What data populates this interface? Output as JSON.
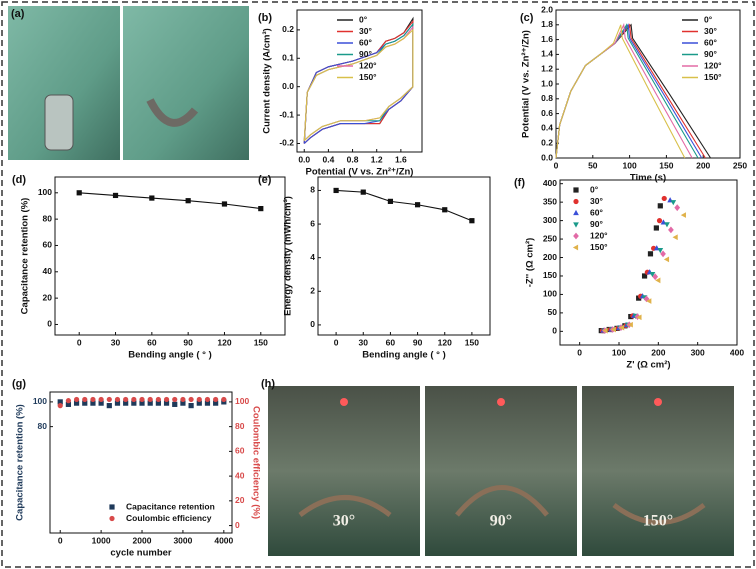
{
  "photos": [
    {
      "panel": "(a)"
    },
    {
      "panel": "(h)",
      "labels": [
        "30°",
        "90°",
        "150°"
      ]
    }
  ],
  "chart_data": [
    {
      "type": "line",
      "panel": "(b)",
      "x_label": "Potential (V vs. Zn²⁺/Zn)",
      "y_label": "Current density (A/cm³)",
      "x": [
        0,
        0.05,
        0.2,
        0.4,
        0.8,
        1.2,
        1.35,
        1.5,
        1.65,
        1.8,
        1.8,
        1.6,
        1.4,
        1.25,
        1.0,
        0.6,
        0.3,
        0.1,
        0
      ],
      "series": [
        {
          "name": "0°",
          "color": "#222222",
          "values": [
            -0.2,
            -0.02,
            0.05,
            0.07,
            0.09,
            0.12,
            0.16,
            0.17,
            0.19,
            0.24,
            0.0,
            -0.05,
            -0.08,
            -0.13,
            -0.13,
            -0.13,
            -0.15,
            -0.18,
            -0.2
          ]
        },
        {
          "name": "30°",
          "color": "#e0312e",
          "values": [
            -0.2,
            -0.02,
            0.05,
            0.07,
            0.09,
            0.12,
            0.16,
            0.17,
            0.19,
            0.23,
            0.0,
            -0.05,
            -0.08,
            -0.13,
            -0.13,
            -0.13,
            -0.15,
            -0.18,
            -0.2
          ]
        },
        {
          "name": "60°",
          "color": "#3a4fd8",
          "values": [
            -0.2,
            -0.02,
            0.05,
            0.07,
            0.09,
            0.12,
            0.15,
            0.16,
            0.18,
            0.22,
            0.0,
            -0.05,
            -0.08,
            -0.12,
            -0.13,
            -0.13,
            -0.15,
            -0.18,
            -0.2
          ]
        },
        {
          "name": "90°",
          "color": "#1a9a8a",
          "values": [
            -0.19,
            -0.02,
            0.04,
            0.06,
            0.08,
            0.11,
            0.15,
            0.16,
            0.18,
            0.22,
            0.0,
            -0.04,
            -0.07,
            -0.12,
            -0.12,
            -0.12,
            -0.14,
            -0.17,
            -0.19
          ]
        },
        {
          "name": "120°",
          "color": "#e26aa6",
          "values": [
            -0.19,
            -0.02,
            0.04,
            0.06,
            0.08,
            0.11,
            0.14,
            0.15,
            0.17,
            0.21,
            0.0,
            -0.04,
            -0.07,
            -0.11,
            -0.12,
            -0.12,
            -0.14,
            -0.17,
            -0.19
          ]
        },
        {
          "name": "150°",
          "color": "#d8c04a",
          "values": [
            -0.19,
            -0.02,
            0.04,
            0.06,
            0.08,
            0.11,
            0.14,
            0.15,
            0.17,
            0.2,
            0.0,
            -0.04,
            -0.07,
            -0.11,
            -0.12,
            -0.12,
            -0.14,
            -0.17,
            -0.19
          ]
        }
      ],
      "xlim": [
        -0.12,
        1.95
      ],
      "ylim": [
        -0.23,
        0.27
      ],
      "xticks": [
        {
          "value": 0,
          "label": "0.0"
        },
        0.4,
        0.8,
        1.2,
        1.6
      ],
      "yticks": [
        -0.2,
        -0.1,
        {
          "value": 0,
          "label": "0.0"
        },
        0.1,
        0.2
      ],
      "legend": "upper center"
    },
    {
      "type": "line",
      "panel": "(c)",
      "x_label": "Time (s)",
      "y_label": "Potential (V vs. Zn²⁺/Zn)",
      "series": [
        {
          "name": "0°",
          "color": "#222222",
          "x": [
            0,
            5,
            20,
            40,
            60,
            80,
            102,
            104,
            155,
            210
          ],
          "values": [
            0,
            0.45,
            0.9,
            1.25,
            1.4,
            1.55,
            1.8,
            1.62,
            0.85,
            0
          ]
        },
        {
          "name": "30°",
          "color": "#e0312e",
          "x": [
            0,
            5,
            20,
            40,
            60,
            80,
            100,
            102,
            150,
            203
          ],
          "values": [
            0,
            0.45,
            0.9,
            1.25,
            1.4,
            1.55,
            1.8,
            1.62,
            0.85,
            0
          ]
        },
        {
          "name": "60°",
          "color": "#3a4fd8",
          "x": [
            0,
            5,
            20,
            40,
            60,
            80,
            98,
            100,
            147,
            198
          ],
          "values": [
            0,
            0.45,
            0.9,
            1.25,
            1.4,
            1.55,
            1.8,
            1.62,
            0.85,
            0
          ]
        },
        {
          "name": "90°",
          "color": "#1a9a8a",
          "x": [
            0,
            5,
            20,
            40,
            60,
            80,
            96,
            98,
            143,
            193
          ],
          "values": [
            0,
            0.45,
            0.9,
            1.25,
            1.4,
            1.55,
            1.8,
            1.62,
            0.85,
            0
          ]
        },
        {
          "name": "120°",
          "color": "#e26aa6",
          "x": [
            0,
            5,
            20,
            40,
            60,
            80,
            92,
            94,
            137,
            185
          ],
          "values": [
            0,
            0.45,
            0.9,
            1.25,
            1.4,
            1.55,
            1.8,
            1.62,
            0.85,
            0
          ]
        },
        {
          "name": "150°",
          "color": "#d8c04a",
          "x": [
            0,
            5,
            20,
            40,
            60,
            78,
            88,
            90,
            130,
            175
          ],
          "values": [
            0,
            0.45,
            0.9,
            1.25,
            1.4,
            1.55,
            1.8,
            1.62,
            0.85,
            0
          ]
        }
      ],
      "xlim": [
        0,
        250
      ],
      "ylim": [
        0,
        2
      ],
      "xticks": [
        0,
        50,
        100,
        150,
        200,
        250
      ],
      "yticks": [
        {
          "value": 0,
          "label": "0.0"
        },
        0.2,
        0.4,
        0.6,
        0.8,
        {
          "value": 1,
          "label": "1.0"
        },
        1.2,
        1.4,
        1.6,
        1.8,
        {
          "value": 2,
          "label": "2.0"
        }
      ],
      "legend": "upper right"
    },
    {
      "type": "line",
      "panel": "(d)",
      "markers": true,
      "x_label": "Bending angle ( ° )",
      "y_label": "Capacitance retention (%)",
      "x": [
        0,
        30,
        60,
        90,
        120,
        150
      ],
      "series": [
        {
          "color": "#111111",
          "marker": "square",
          "values": [
            100,
            98,
            96,
            94,
            91.5,
            88
          ]
        }
      ],
      "xlim": [
        -20,
        170
      ],
      "ylim": [
        -8,
        112
      ],
      "xticks": [
        0,
        30,
        60,
        90,
        120,
        150
      ],
      "yticks": [
        0,
        20,
        40,
        60,
        80,
        100
      ]
    },
    {
      "type": "line",
      "panel": "(e)",
      "markers": true,
      "x_label": "Bending angle ( ° )",
      "y_label": "Energy density (mWh/cm³)",
      "x": [
        0,
        30,
        60,
        90,
        120,
        150
      ],
      "series": [
        {
          "color": "#111111",
          "marker": "square",
          "values": [
            8.0,
            7.9,
            7.35,
            7.15,
            6.85,
            6.2
          ]
        }
      ],
      "xlim": [
        -20,
        170
      ],
      "ylim": [
        -0.6,
        8.8
      ],
      "xticks": [
        0,
        30,
        60,
        90,
        120,
        150
      ],
      "yticks": [
        0,
        2,
        4,
        6,
        8
      ]
    },
    {
      "type": "scatter",
      "panel": "(f)",
      "x_label": "Z' (Ω cm²)",
      "y_label": "-Z'' (Ω cm²)",
      "series": [
        {
          "name": "0°",
          "color": "#222222",
          "marker": "square",
          "x": [
            55,
            75,
            95,
            115,
            130,
            150,
            165,
            180,
            195,
            205
          ],
          "values": [
            2,
            5,
            8,
            15,
            40,
            90,
            150,
            210,
            280,
            340
          ]
        },
        {
          "name": "30°",
          "color": "#e0312e",
          "marker": "circle",
          "x": [
            58,
            78,
            98,
            118,
            135,
            155,
            172,
            188,
            203,
            215
          ],
          "values": [
            2,
            5,
            9,
            16,
            42,
            95,
            160,
            225,
            300,
            360
          ]
        },
        {
          "name": "60°",
          "color": "#3a4fd8",
          "marker": "triangle",
          "x": [
            60,
            80,
            100,
            120,
            138,
            160,
            178,
            196,
            213,
            230
          ],
          "values": [
            2,
            5,
            9,
            17,
            42,
            95,
            160,
            225,
            295,
            355
          ]
        },
        {
          "name": "90°",
          "color": "#1a9a8a",
          "marker": "triangle-down",
          "x": [
            62,
            82,
            102,
            122,
            142,
            165,
            185,
            205,
            222,
            238
          ],
          "values": [
            2,
            5,
            10,
            18,
            42,
            92,
            155,
            220,
            290,
            350
          ]
        },
        {
          "name": "120°",
          "color": "#e26aa6",
          "marker": "diamond",
          "x": [
            64,
            84,
            105,
            126,
            147,
            170,
            192,
            212,
            232,
            248
          ],
          "values": [
            2,
            5,
            10,
            18,
            40,
            88,
            148,
            210,
            275,
            335
          ]
        },
        {
          "name": "150°",
          "color": "#e0b24a",
          "marker": "triangle-left",
          "x": [
            66,
            87,
            108,
            130,
            152,
            177,
            200,
            222,
            244,
            265
          ],
          "values": [
            2,
            5,
            10,
            18,
            38,
            82,
            138,
            195,
            255,
            315
          ]
        }
      ],
      "xlim": [
        -50,
        400
      ],
      "ylim": [
        -37,
        410
      ],
      "xticks": [
        0,
        100,
        200,
        300,
        400
      ],
      "yticks": [
        0,
        50,
        100,
        150,
        200,
        250,
        300,
        350,
        400
      ],
      "legend": "upper left"
    },
    {
      "type": "scatter",
      "panel": "(g)",
      "x_label": "cycle number",
      "y_label": "Capacitance retention (%)",
      "y2_label": "Coulombic efficiency (%)",
      "y_color": "#1f3a5a",
      "y2_color": "#d84a4a",
      "x": [
        0,
        200,
        400,
        600,
        800,
        1000,
        1200,
        1400,
        1600,
        1800,
        2000,
        2200,
        2400,
        2600,
        2800,
        3000,
        3200,
        3400,
        3600,
        3800,
        4000
      ],
      "series": [
        {
          "name": "Capacitance retention",
          "color": "#1f3a5a",
          "marker": "square",
          "values": [
            100,
            98,
            99,
            99,
            99,
            99,
            97,
            99,
            99,
            99,
            99,
            99,
            99,
            99,
            98,
            99,
            97,
            99,
            99,
            99,
            100
          ]
        },
        {
          "name": "Coulombic efficiency",
          "color": "#d84a4a",
          "marker": "circle",
          "axis": "y2",
          "values": [
            97,
            101,
            102,
            102,
            102,
            102,
            102,
            102,
            102,
            102,
            102,
            102,
            102,
            102,
            102,
            102,
            102,
            102,
            102,
            102,
            102
          ]
        }
      ],
      "xlim": [
        -250,
        4200
      ],
      "ylim": [
        -6,
        108
      ],
      "y2lim": [
        -6,
        108
      ],
      "xticks": [
        0,
        1000,
        2000,
        3000,
        4000
      ],
      "yticks": [
        80,
        100
      ],
      "y2ticks": [
        0,
        20,
        40,
        60,
        80,
        100
      ],
      "legend": "lower right"
    }
  ]
}
